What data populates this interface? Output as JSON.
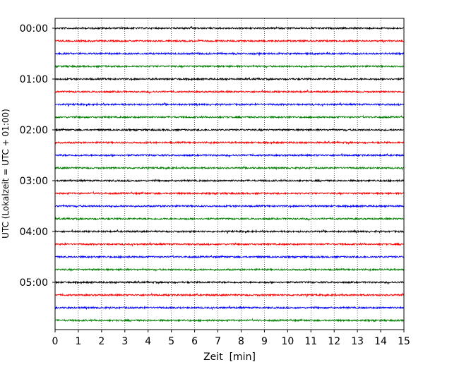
{
  "chart_data": {
    "type": "line",
    "title": "",
    "xlabel": "Zeit  [min]",
    "ylabel": "UTC (Lokalzeit = UTC + 01:00)",
    "xlim": [
      0,
      15
    ],
    "x_ticks": [
      "0",
      "1",
      "2",
      "3",
      "4",
      "5",
      "6",
      "7",
      "8",
      "9",
      "10",
      "11",
      "12",
      "13",
      "14",
      "15"
    ],
    "y_tick_labels": [
      "00:00",
      "01:00",
      "02:00",
      "03:00",
      "04:00",
      "05:00"
    ],
    "grid": {
      "x": true,
      "y": false,
      "style": "dotted"
    },
    "trace_interval_minutes": 15,
    "trace_start": "00:00",
    "trace_count": 24,
    "color_cycle": [
      "#000000",
      "#ff0000",
      "#0000ff",
      "#008000"
    ],
    "series": [
      {
        "start": "00:00",
        "color": "#000000"
      },
      {
        "start": "00:15",
        "color": "#ff0000"
      },
      {
        "start": "00:30",
        "color": "#0000ff"
      },
      {
        "start": "00:45",
        "color": "#008000"
      },
      {
        "start": "01:00",
        "color": "#000000"
      },
      {
        "start": "01:15",
        "color": "#ff0000"
      },
      {
        "start": "01:30",
        "color": "#0000ff"
      },
      {
        "start": "01:45",
        "color": "#008000"
      },
      {
        "start": "02:00",
        "color": "#000000"
      },
      {
        "start": "02:15",
        "color": "#ff0000"
      },
      {
        "start": "02:30",
        "color": "#0000ff"
      },
      {
        "start": "02:45",
        "color": "#008000"
      },
      {
        "start": "03:00",
        "color": "#000000"
      },
      {
        "start": "03:15",
        "color": "#ff0000"
      },
      {
        "start": "03:30",
        "color": "#0000ff"
      },
      {
        "start": "03:45",
        "color": "#008000"
      },
      {
        "start": "04:00",
        "color": "#000000"
      },
      {
        "start": "04:15",
        "color": "#ff0000"
      },
      {
        "start": "04:30",
        "color": "#0000ff"
      },
      {
        "start": "04:45",
        "color": "#008000"
      },
      {
        "start": "05:00",
        "color": "#000000"
      },
      {
        "start": "05:15",
        "color": "#ff0000"
      },
      {
        "start": "05:30",
        "color": "#0000ff"
      },
      {
        "start": "05:45",
        "color": "#008000"
      }
    ]
  }
}
